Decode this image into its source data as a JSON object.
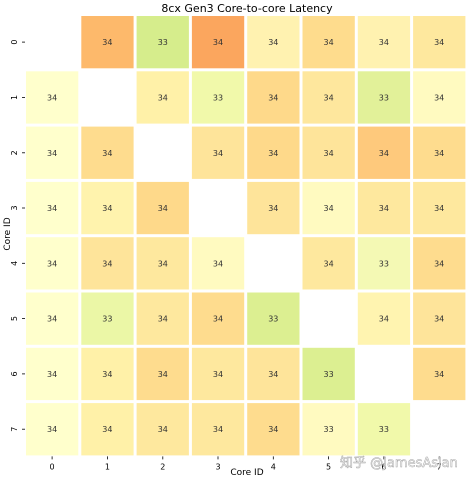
{
  "chart_data": {
    "type": "heatmap",
    "title": "8cx Gen3 Core-to-core Latency",
    "xlabel": "Core ID",
    "ylabel": "Core ID",
    "x_categories": [
      "0",
      "1",
      "2",
      "3",
      "4",
      "5",
      "6",
      "7"
    ],
    "y_categories": [
      "0",
      "1",
      "2",
      "3",
      "4",
      "5",
      "6",
      "7"
    ],
    "values": [
      [
        null,
        34,
        33,
        34,
        34,
        34,
        34,
        34
      ],
      [
        34,
        null,
        34,
        33,
        34,
        34,
        33,
        34
      ],
      [
        34,
        34,
        null,
        34,
        34,
        34,
        34,
        34
      ],
      [
        34,
        34,
        34,
        null,
        34,
        34,
        34,
        34
      ],
      [
        34,
        34,
        34,
        34,
        null,
        34,
        33,
        34
      ],
      [
        34,
        33,
        34,
        34,
        33,
        null,
        34,
        34
      ],
      [
        34,
        34,
        34,
        34,
        34,
        33,
        null,
        34
      ],
      [
        34,
        34,
        34,
        34,
        34,
        33,
        33,
        null
      ]
    ],
    "colors": [
      [
        null,
        "#fdb96b",
        "#d6ed8c",
        "#fba65e",
        "#fff2b0",
        "#fedc8d",
        "#fff2b0",
        "#fee89e"
      ],
      [
        null,
        null,
        "#fff1a8",
        "#f1f9aa",
        "#fed98a",
        "#fee79d",
        "#e2f199",
        "#fffac0"
      ],
      [
        null,
        "#fedc8e",
        null,
        "#fee49a",
        "#fed98a",
        "#fee49a",
        "#fec97c",
        "#fedc8e"
      ],
      [
        null,
        "#fff3ad",
        "#fed98a",
        null,
        "#fee49a",
        "#fffac0",
        "#fee89e",
        "#fee89e"
      ],
      [
        null,
        "#fee49a",
        "#fee89e",
        "#fffac0",
        null,
        "#fee89e",
        "#f4f9b4",
        "#fedc8e"
      ],
      [
        null,
        "#ebf7a6",
        "#fee89e",
        "#fedc8e",
        "#dcef91",
        null,
        "#fff4b0",
        "#fee49a"
      ],
      [
        null,
        "#fff1a8",
        "#fedc8e",
        "#fee89e",
        "#fee49a",
        "#dcef91",
        null,
        "#fedc8e"
      ],
      [
        null,
        "#fff1a8",
        "#fee89e",
        "#fee89e",
        "#fedc8e",
        "#fffac0",
        "#f1f9aa",
        null
      ]
    ],
    "colorbar": false,
    "grid": false
  },
  "watermark": "知乎 @JamesAslan"
}
